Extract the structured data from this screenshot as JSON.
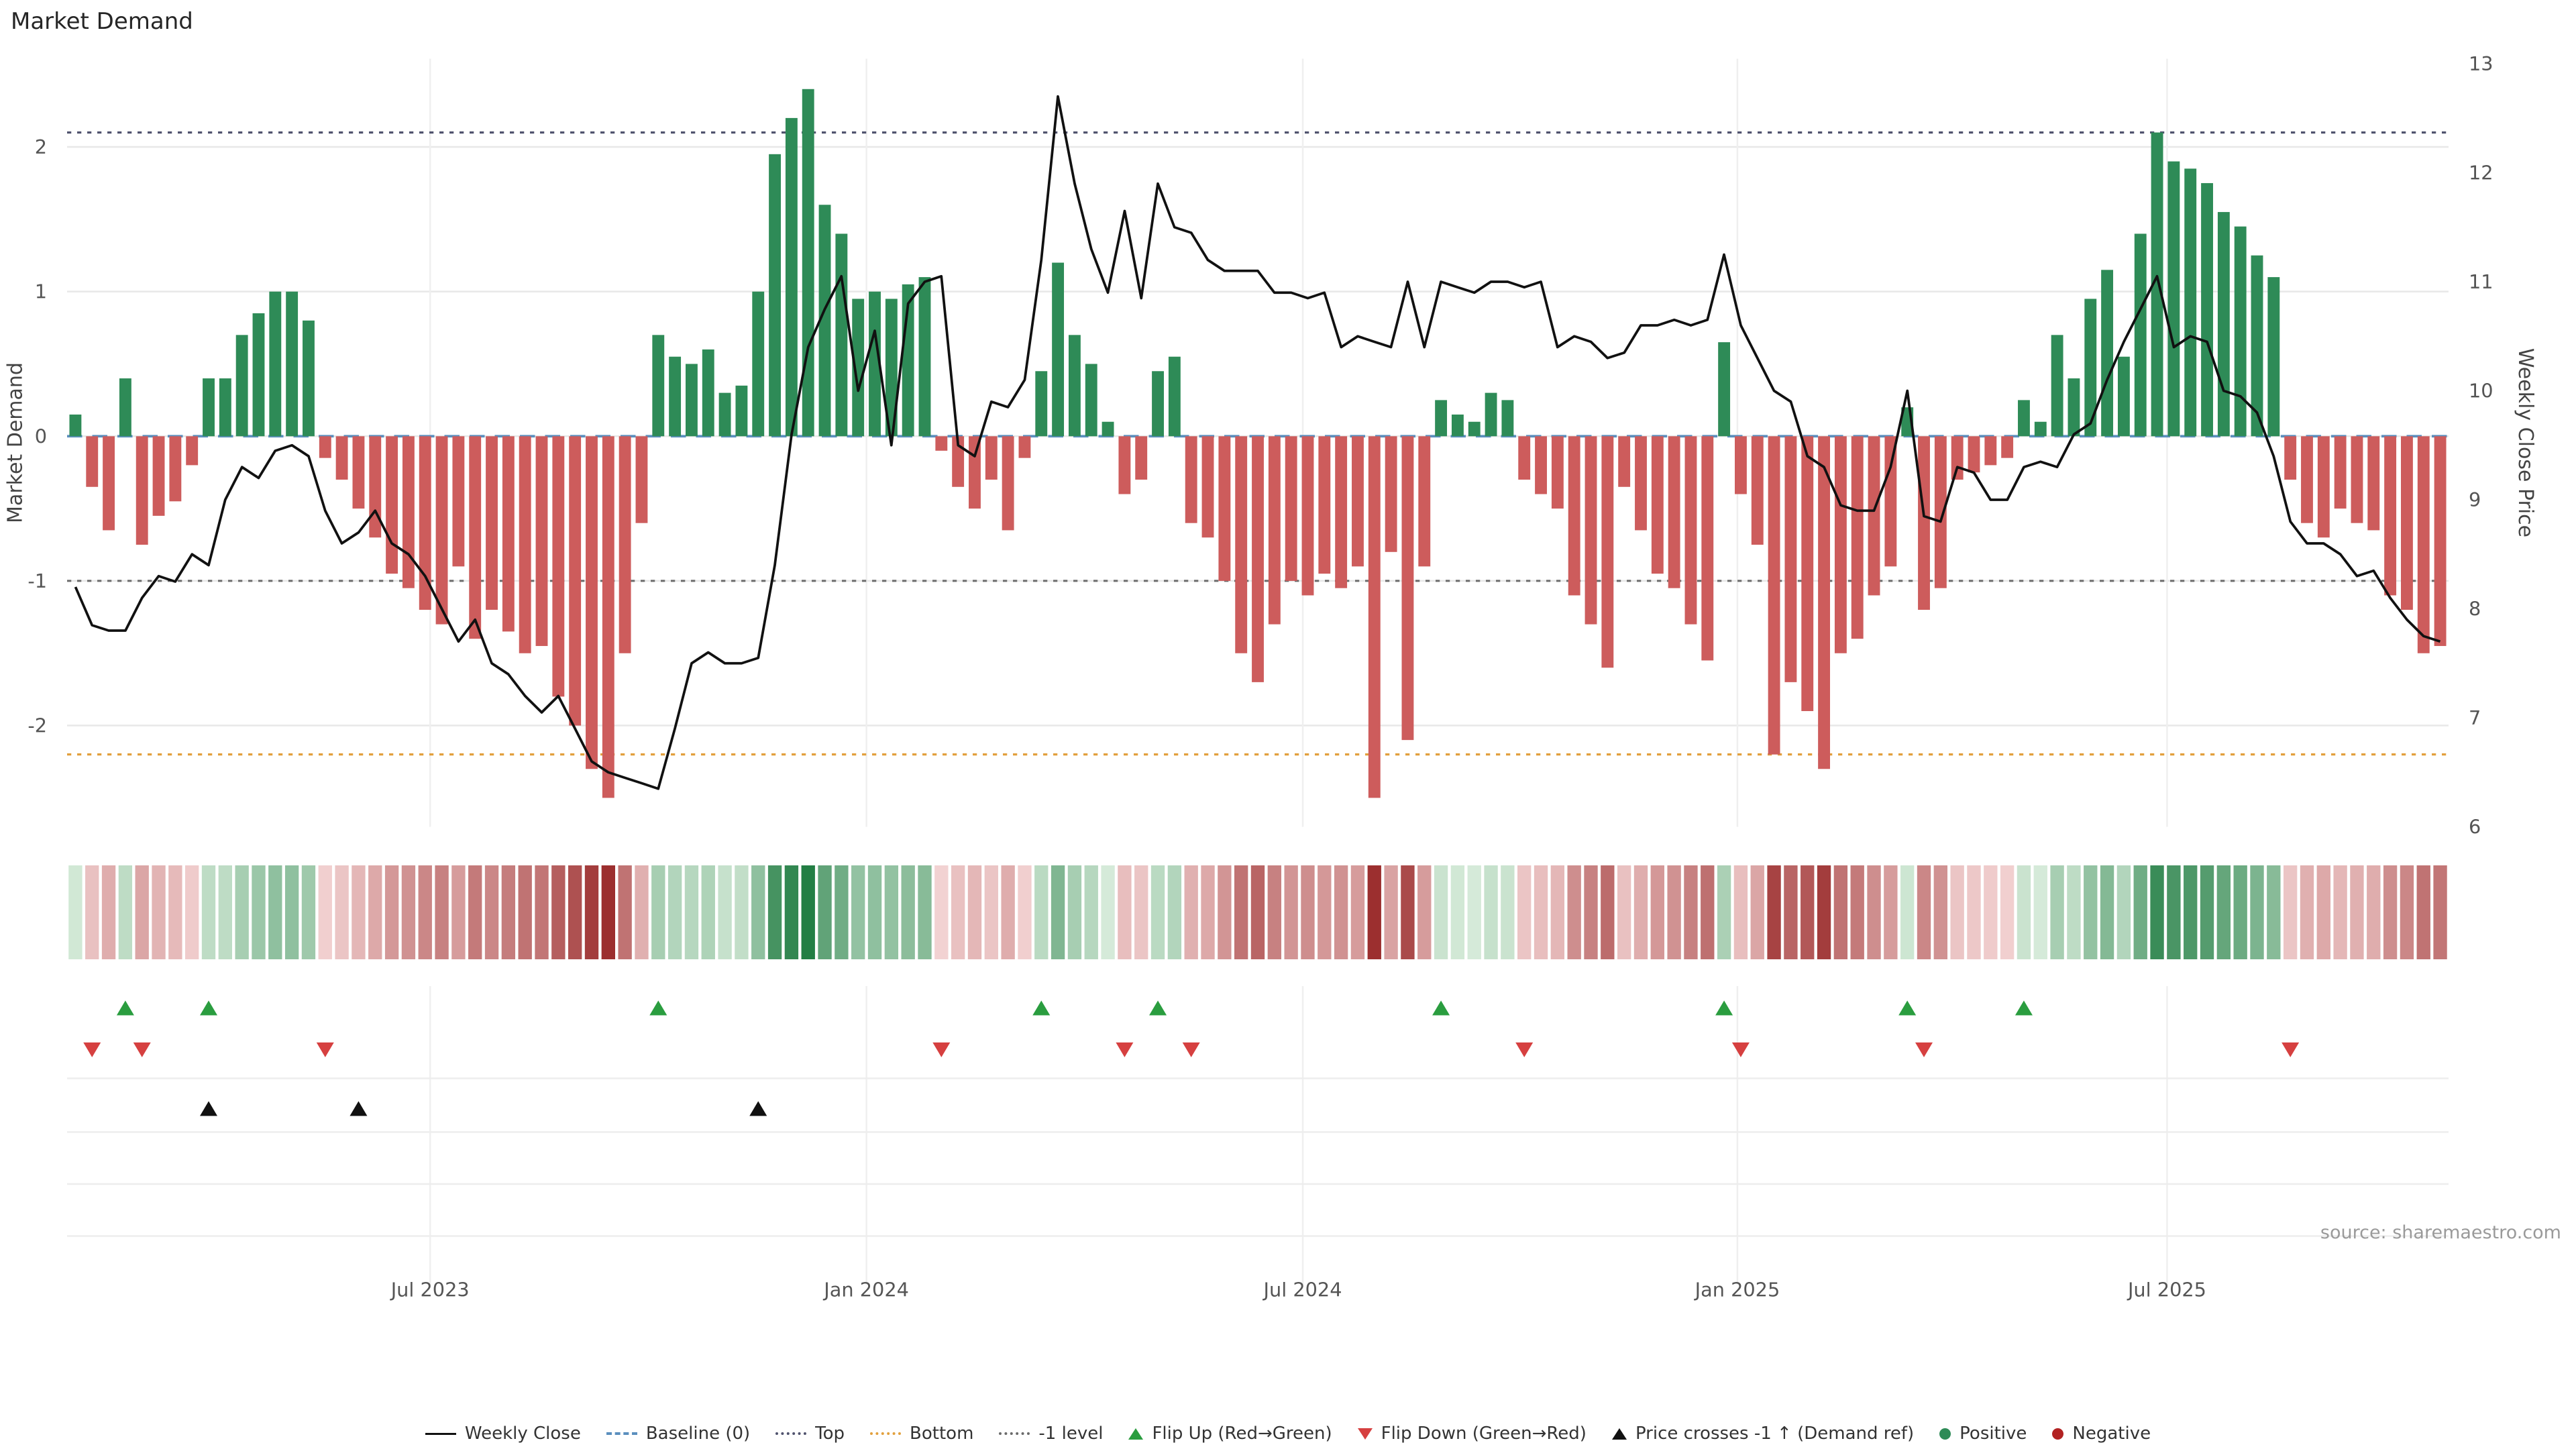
{
  "title": "Market Demand",
  "source_text": "source: sharemaestro.com",
  "axes": {
    "left_label": "Market Demand",
    "right_label": "Weekly Close Price",
    "left_ticks": [
      2,
      1,
      0,
      -1,
      -2
    ],
    "right_ticks": [
      13,
      12,
      11,
      10,
      9,
      8,
      7,
      6
    ],
    "x_tick_labels": [
      "Jul 2023",
      "Jan 2024",
      "Jul 2024",
      "Jan 2025",
      "Jul 2025"
    ],
    "x_tick_indices": [
      21.3,
      47.5,
      73.7,
      99.8,
      125.6
    ]
  },
  "colors": {
    "positive_bar": "#2e8b57",
    "negative_bar": "#cd5c5c",
    "price_line": "#111111",
    "baseline": "#5b8fbe",
    "top_line": "#50536e",
    "bottom_line": "#e2a03d",
    "minus1_line": "#6b6b6b",
    "flip_up": "#2a9d3f",
    "flip_down": "#d64040",
    "price_cross": "#111111",
    "grid": "#e8e8e8",
    "tick_text": "#555555",
    "axis_label_text": "#444444"
  },
  "chart_data": {
    "type": "bar+line",
    "n_weeks": 143,
    "x_tick_labels": [
      "Jul 2023",
      "Jan 2024",
      "Jul 2024",
      "Jan 2025",
      "Jul 2025"
    ],
    "left_ylim": [
      -2.7,
      2.61
    ],
    "right_ylim": [
      6,
      13
    ],
    "thresholds": {
      "baseline": 0,
      "top": 2.1,
      "minus1": -1,
      "bottom": -2.2
    },
    "series": [
      {
        "name": "Market Demand",
        "type": "bar",
        "axis": "left",
        "values": [
          0.15,
          -0.35,
          -0.65,
          0.4,
          -0.75,
          -0.55,
          -0.45,
          -0.2,
          0.4,
          0.4,
          0.7,
          0.85,
          1.0,
          1.0,
          0.8,
          -0.15,
          -0.3,
          -0.5,
          -0.7,
          -0.95,
          -1.05,
          -1.2,
          -1.3,
          -0.9,
          -1.4,
          -1.2,
          -1.35,
          -1.5,
          -1.45,
          -1.8,
          -2.0,
          -2.3,
          -2.5,
          -1.5,
          -0.6,
          0.7,
          0.55,
          0.5,
          0.6,
          0.3,
          0.35,
          1.0,
          1.95,
          2.2,
          2.4,
          1.6,
          1.4,
          0.95,
          1.0,
          0.95,
          1.05,
          1.1,
          -0.1,
          -0.35,
          -0.5,
          -0.3,
          -0.65,
          -0.15,
          0.45,
          1.2,
          0.7,
          0.5,
          0.1,
          -0.4,
          -0.3,
          0.45,
          0.55,
          -0.6,
          -0.7,
          -1.0,
          -1.5,
          -1.7,
          -1.3,
          -1.0,
          -1.1,
          -0.95,
          -1.05,
          -0.9,
          -2.5,
          -0.8,
          -2.1,
          -0.9,
          0.25,
          0.15,
          0.1,
          0.3,
          0.25,
          -0.3,
          -0.4,
          -0.5,
          -1.1,
          -1.3,
          -1.6,
          -0.35,
          -0.65,
          -0.95,
          -1.05,
          -1.3,
          -1.55,
          0.65,
          -0.4,
          -0.75,
          -2.2,
          -1.7,
          -1.9,
          -2.3,
          -1.5,
          -1.4,
          -1.1,
          -0.9,
          0.2,
          -1.2,
          -1.05,
          -0.3,
          -0.25,
          -0.2,
          -0.15,
          0.25,
          0.1,
          0.7,
          0.4,
          0.95,
          1.15,
          0.55,
          1.4,
          2.1,
          1.9,
          1.85,
          1.75,
          1.55,
          1.45,
          1.25,
          1.1,
          -0.3,
          -0.6,
          -0.7,
          -0.5,
          -0.6,
          -0.65,
          -1.1,
          -1.2,
          -1.5,
          -1.45
        ]
      },
      {
        "name": "Weekly Close",
        "type": "line",
        "axis": "right",
        "values": [
          8.2,
          7.85,
          7.8,
          7.8,
          8.1,
          8.3,
          8.25,
          8.5,
          8.4,
          9.0,
          9.3,
          9.2,
          9.45,
          9.5,
          9.4,
          8.9,
          8.6,
          8.7,
          8.9,
          8.6,
          8.5,
          8.3,
          8.0,
          7.7,
          7.9,
          7.5,
          7.4,
          7.2,
          7.05,
          7.2,
          6.9,
          6.6,
          6.5,
          6.45,
          6.4,
          6.35,
          6.9,
          7.5,
          7.6,
          7.5,
          7.5,
          7.55,
          8.4,
          9.6,
          10.4,
          10.75,
          11.05,
          10.0,
          10.55,
          9.5,
          10.8,
          11.0,
          11.05,
          9.5,
          9.4,
          9.9,
          9.85,
          10.1,
          11.2,
          12.7,
          11.9,
          11.3,
          10.9,
          11.65,
          10.85,
          11.9,
          11.5,
          11.45,
          11.2,
          11.1,
          11.1,
          11.1,
          10.9,
          10.9,
          10.85,
          10.9,
          10.4,
          10.5,
          10.45,
          10.4,
          11.0,
          10.4,
          11.0,
          10.95,
          10.9,
          11.0,
          11.0,
          10.95,
          11.0,
          10.4,
          10.5,
          10.45,
          10.3,
          10.35,
          10.6,
          10.6,
          10.65,
          10.6,
          10.65,
          11.25,
          10.6,
          10.3,
          10.0,
          9.9,
          9.4,
          9.3,
          8.95,
          8.9,
          8.9,
          9.3,
          10.0,
          8.85,
          8.8,
          9.3,
          9.25,
          9.0,
          9.0,
          9.3,
          9.35,
          9.3,
          9.6,
          9.7,
          10.1,
          10.45,
          10.75,
          11.05,
          10.4,
          10.5,
          10.45,
          10.0,
          9.95,
          9.8,
          9.4,
          8.8,
          8.6,
          8.6,
          8.5,
          8.3,
          8.35,
          8.1,
          7.9,
          7.75,
          7.7
        ]
      }
    ],
    "markers": {
      "flip_up_indices": [
        3,
        8,
        35,
        58,
        65,
        82,
        99,
        110,
        117
      ],
      "flip_down_indices": [
        1,
        4,
        15,
        52,
        63,
        67,
        87,
        100,
        111,
        133
      ],
      "price_cross_indices": [
        8,
        17,
        41
      ]
    },
    "heatmap": {
      "description": "intensity strip of Market Demand values",
      "max_abs": 2.5
    }
  },
  "legend": [
    {
      "label": "Weekly Close",
      "marker": "solid-line",
      "color": "#111111"
    },
    {
      "label": "Baseline (0)",
      "marker": "dashed-line",
      "color": "#5b8fbe"
    },
    {
      "label": "Top",
      "marker": "dotted-line",
      "color": "#50536e"
    },
    {
      "label": "Bottom",
      "marker": "dotted-line",
      "color": "#e2a03d"
    },
    {
      "label": "-1 level",
      "marker": "dotted-line",
      "color": "#6b6b6b"
    },
    {
      "label": "Flip Up (Red→Green)",
      "marker": "triangle-up",
      "color": "#2a9d3f"
    },
    {
      "label": "Flip Down (Green→Red)",
      "marker": "triangle-down",
      "color": "#d64040"
    },
    {
      "label": "Price crosses -1 ↑ (Demand ref)",
      "marker": "triangle-up",
      "color": "#111111"
    },
    {
      "label": "Positive",
      "marker": "dot",
      "color": "#2e8b57"
    },
    {
      "label": "Negative",
      "marker": "dot",
      "color": "#b22222"
    }
  ]
}
